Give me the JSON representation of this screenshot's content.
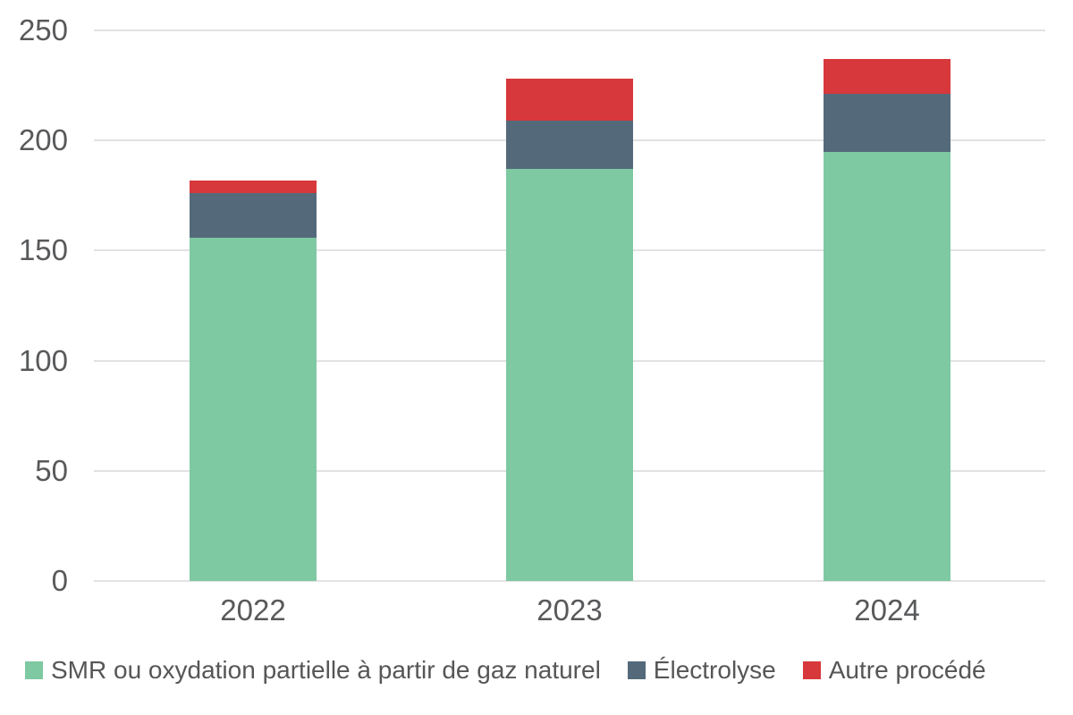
{
  "chart": {
    "background_color": "#ffffff",
    "axis_text_color": "#58595b",
    "legend_text_color": "#565656",
    "gridline_color": "#e2e2e2"
  },
  "chart_data": {
    "type": "bar",
    "stacked": true,
    "title": "",
    "xlabel": "",
    "ylabel": "",
    "categories": [
      "2022",
      "2023",
      "2024"
    ],
    "series": [
      {
        "name": "SMR ou oxydation partielle à partir de gaz naturel",
        "color": "#7ec8a2",
        "values": [
          156,
          187,
          195
        ]
      },
      {
        "name": "Électrolyse",
        "color": "#546a7b",
        "values": [
          20,
          22,
          26
        ]
      },
      {
        "name": "Autre procédé",
        "color": "#d7383b",
        "values": [
          6,
          19,
          16
        ]
      }
    ],
    "stack_totals": [
      182,
      228,
      237
    ],
    "y_ticks": [
      0,
      50,
      100,
      150,
      200,
      250
    ],
    "ylim": [
      0,
      250
    ],
    "grid": "horizontal",
    "legend_position": "bottom"
  }
}
